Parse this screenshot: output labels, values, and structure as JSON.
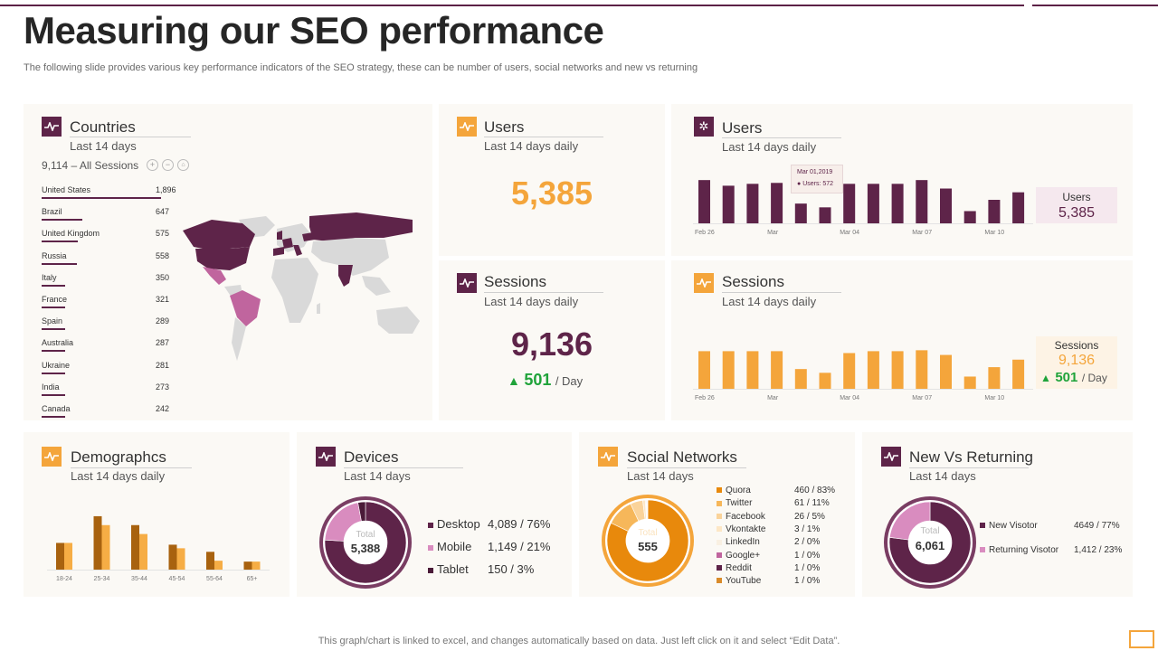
{
  "title": "Measuring our SEO performance",
  "subtitle": "The following slide provides various key performance indicators of the SEO strategy, these can be number of users, social networks and new vs returning",
  "footer": "This graph/chart is linked to excel,  and changes automatically based on data. Just left click on it and select “Edit Data”.",
  "colors": {
    "maroon": "#5e2449",
    "orange": "#f4a53b",
    "pink": "#c0659e",
    "green": "#1fa33a"
  },
  "countries": {
    "title": "Countries",
    "period": "Last 14 days",
    "sessions_label": "9,114 – All Sessions",
    "rows": [
      {
        "name": "United States",
        "value": "1,896",
        "num": 1896
      },
      {
        "name": "Brazil",
        "value": "647",
        "num": 647
      },
      {
        "name": "United Kingdom",
        "value": "575",
        "num": 575
      },
      {
        "name": "Russia",
        "value": "558",
        "num": 558
      },
      {
        "name": "Italy",
        "value": "350",
        "num": 350
      },
      {
        "name": "France",
        "value": "321",
        "num": 321
      },
      {
        "name": "Spain",
        "value": "289",
        "num": 289
      },
      {
        "name": "Australia",
        "value": "287",
        "num": 287
      },
      {
        "name": "Ukraine",
        "value": "281",
        "num": 281
      },
      {
        "name": "India",
        "value": "273",
        "num": 273
      },
      {
        "name": "Canada",
        "value": "242",
        "num": 242
      }
    ]
  },
  "users_kpi": {
    "title": "Users",
    "period": "Last 14 days daily",
    "value": "5,385"
  },
  "sessions_kpi": {
    "title": "Sessions",
    "period": "Last 14 days daily",
    "value": "9,136",
    "delta": "501",
    "delta_unit": "/ Day"
  },
  "users_chart": {
    "title": "Users",
    "period": "Last 14 days daily",
    "summary_label": "Users",
    "summary_value": "5,385",
    "tooltip_date": "Mar 01,2019",
    "tooltip_value": "Users: 572"
  },
  "sessions_chart": {
    "title": "Sessions",
    "period": "Last 14 days daily",
    "summary_label": "Sessions",
    "summary_value": "9,136",
    "delta": "501",
    "delta_unit": "/ Day"
  },
  "demographics": {
    "title": "Demographcs",
    "period": "Last 14 days daily"
  },
  "devices": {
    "title": "Devices",
    "period": "Last 14 days",
    "total_label": "Total",
    "total_value": "5,388",
    "items": [
      {
        "label": "Desktop",
        "value": "4,089 / 76%",
        "pct": 76,
        "color": "#5e2449"
      },
      {
        "label": "Mobile",
        "value": "1,149 / 21%",
        "pct": 21,
        "color": "#d98cbf"
      },
      {
        "label": "Tablet",
        "value": "150 / 3%",
        "pct": 3,
        "color": "#4a1a38"
      }
    ]
  },
  "social": {
    "title": "Social Networks",
    "period": "Last 14 days",
    "total_label": "Total",
    "total_value": "555",
    "items": [
      {
        "label": "Quora",
        "value": "460 / 83%",
        "pct": 83,
        "color": "#e8890c"
      },
      {
        "label": "Twitter",
        "value": "61 / 11%",
        "pct": 11,
        "color": "#f6b75a"
      },
      {
        "label": "Facebook",
        "value": "26 / 5%",
        "pct": 5,
        "color": "#fad39a"
      },
      {
        "label": "Vkontakte",
        "value": "3 / 1%",
        "pct": 1,
        "color": "#fde7c6"
      },
      {
        "label": "LinkedIn",
        "value": "2 / 0%",
        "pct": 0.4,
        "color": "#f9f0e2"
      },
      {
        "label": "Google+",
        "value": "1 / 0%",
        "pct": 0.2,
        "color": "#c0659e"
      },
      {
        "label": "Reddit",
        "value": "1 / 0%",
        "pct": 0.2,
        "color": "#5e2449"
      },
      {
        "label": "YouTube",
        "value": "1 / 0%",
        "pct": 0.2,
        "color": "#d98b2a"
      }
    ]
  },
  "new_vs_returning": {
    "title": "New Vs Returning",
    "period": "Last 14 days",
    "total_label": "Total",
    "total_value": "6,061",
    "items": [
      {
        "label": "New Visotor",
        "value": "4649 / 77%",
        "pct": 77,
        "color": "#5e2449"
      },
      {
        "label": "Returning Visotor",
        "value": "1,412 / 23%",
        "pct": 23,
        "color": "#d98cbf"
      }
    ]
  },
  "chart_data": [
    {
      "type": "bar",
      "title": "Users",
      "series": [
        {
          "values": [
            46,
            40,
            42,
            43,
            21,
            17,
            42,
            42,
            42,
            46,
            37,
            13,
            25,
            33
          ]
        }
      ],
      "x_tick_labels": [
        "Feb 26",
        "Mar",
        "Mar 04",
        "Mar 07",
        "Mar 10"
      ],
      "ylim": [
        0,
        50
      ],
      "grid": false
    },
    {
      "type": "bar",
      "title": "Sessions",
      "series": [
        {
          "values": [
            40,
            40,
            40,
            40,
            21,
            17,
            38,
            40,
            40,
            41,
            36,
            13,
            23,
            31
          ]
        }
      ],
      "x_tick_labels": [
        "Feb 26",
        "Mar",
        "Mar 04",
        "Mar 07",
        "Mar 10"
      ],
      "ylim": [
        0,
        50
      ],
      "grid": false
    },
    {
      "type": "bar",
      "title": "Demographcs",
      "categories": [
        "18-24",
        "25-34",
        "35-44",
        "45-54",
        "55-64",
        "65+"
      ],
      "series": [
        {
          "values": [
            30,
            60,
            50,
            28,
            20,
            9
          ],
          "color": "#a8620f"
        },
        {
          "values": [
            30,
            50,
            40,
            24,
            10,
            9
          ],
          "color": "#f6ad45"
        }
      ],
      "ylim": [
        0,
        65
      ],
      "grid": false
    }
  ]
}
